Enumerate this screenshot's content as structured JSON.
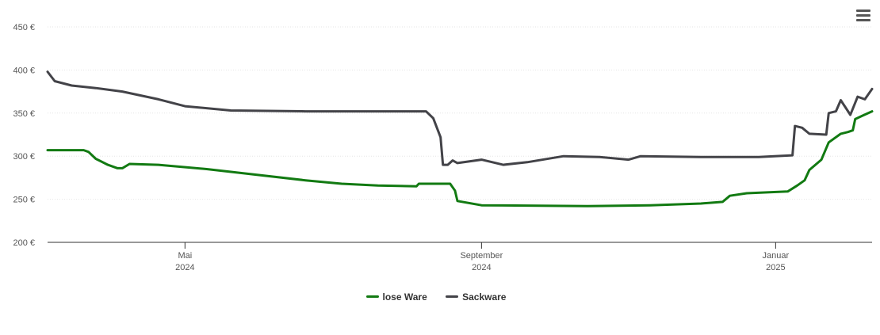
{
  "chart_data": {
    "type": "line",
    "title": "",
    "xlabel": "",
    "ylabel": "",
    "ylim": [
      200,
      450
    ],
    "y_ticks": [
      "200 €",
      "250 €",
      "300 €",
      "350 €",
      "400 €",
      "450 €"
    ],
    "y_tick_values": [
      200,
      250,
      300,
      350,
      400,
      450
    ],
    "xlim": [
      "2024-03-05",
      "2025-02-10"
    ],
    "x_ticks": [
      {
        "date": "2024-05-01",
        "month": "Mai",
        "year": "2024"
      },
      {
        "date": "2024-09-01",
        "month": "September",
        "year": "2024"
      },
      {
        "date": "2025-01-01",
        "month": "Januar",
        "year": "2025"
      }
    ],
    "grid": true,
    "legend": "bottom-center",
    "series": [
      {
        "name": "lose Ware",
        "color": "#127a12",
        "points": [
          [
            "2024-03-05",
            307
          ],
          [
            "2024-03-20",
            307
          ],
          [
            "2024-03-22",
            305
          ],
          [
            "2024-03-25",
            297
          ],
          [
            "2024-03-30",
            290
          ],
          [
            "2024-04-03",
            286
          ],
          [
            "2024-04-05",
            286
          ],
          [
            "2024-04-08",
            291
          ],
          [
            "2024-04-20",
            290
          ],
          [
            "2024-05-10",
            285
          ],
          [
            "2024-06-01",
            278
          ],
          [
            "2024-06-20",
            272
          ],
          [
            "2024-07-05",
            268
          ],
          [
            "2024-07-20",
            266
          ],
          [
            "2024-08-05",
            265
          ],
          [
            "2024-08-06",
            268
          ],
          [
            "2024-08-19",
            268
          ],
          [
            "2024-08-21",
            260
          ],
          [
            "2024-08-22",
            248
          ],
          [
            "2024-09-01",
            243
          ],
          [
            "2024-10-15",
            242
          ],
          [
            "2024-11-10",
            243
          ],
          [
            "2024-12-01",
            245
          ],
          [
            "2024-12-10",
            247
          ],
          [
            "2024-12-13",
            254
          ],
          [
            "2024-12-20",
            257
          ],
          [
            "2025-01-06",
            259
          ],
          [
            "2025-01-10",
            266
          ],
          [
            "2025-01-13",
            272
          ],
          [
            "2025-01-15",
            284
          ],
          [
            "2025-01-20",
            296
          ],
          [
            "2025-01-23",
            316
          ],
          [
            "2025-01-28",
            326
          ],
          [
            "2025-01-31",
            328
          ],
          [
            "2025-02-02",
            330
          ],
          [
            "2025-02-03",
            343
          ],
          [
            "2025-02-06",
            347
          ],
          [
            "2025-02-10",
            352
          ]
        ]
      },
      {
        "name": "Sackware",
        "color": "#434348",
        "points": [
          [
            "2024-03-05",
            398
          ],
          [
            "2024-03-08",
            387
          ],
          [
            "2024-03-15",
            382
          ],
          [
            "2024-03-25",
            379
          ],
          [
            "2024-04-05",
            375
          ],
          [
            "2024-04-20",
            366
          ],
          [
            "2024-05-01",
            358
          ],
          [
            "2024-05-20",
            353
          ],
          [
            "2024-06-20",
            352
          ],
          [
            "2024-08-01",
            352
          ],
          [
            "2024-08-09",
            352
          ],
          [
            "2024-08-12",
            344
          ],
          [
            "2024-08-15",
            322
          ],
          [
            "2024-08-16",
            290
          ],
          [
            "2024-08-18",
            290
          ],
          [
            "2024-08-20",
            295
          ],
          [
            "2024-08-22",
            292
          ],
          [
            "2024-09-01",
            296
          ],
          [
            "2024-09-10",
            290
          ],
          [
            "2024-09-20",
            293
          ],
          [
            "2024-10-05",
            300
          ],
          [
            "2024-10-20",
            299
          ],
          [
            "2024-11-01",
            296
          ],
          [
            "2024-11-06",
            300
          ],
          [
            "2024-12-01",
            299
          ],
          [
            "2024-12-25",
            299
          ],
          [
            "2025-01-08",
            301
          ],
          [
            "2025-01-09",
            335
          ],
          [
            "2025-01-12",
            333
          ],
          [
            "2025-01-15",
            326
          ],
          [
            "2025-01-22",
            325
          ],
          [
            "2025-01-23",
            350
          ],
          [
            "2025-01-26",
            352
          ],
          [
            "2025-01-28",
            365
          ],
          [
            "2025-02-01",
            348
          ],
          [
            "2025-02-04",
            369
          ],
          [
            "2025-02-07",
            366
          ],
          [
            "2025-02-10",
            378
          ]
        ]
      }
    ]
  },
  "toolbar": {
    "menu_icon": "hamburger-menu-icon"
  }
}
